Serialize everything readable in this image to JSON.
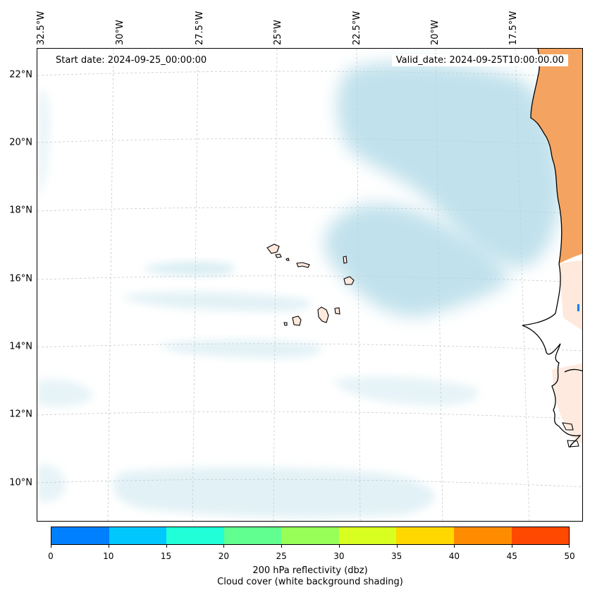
{
  "map": {
    "start_date": "Start date: 2024-09-25_00:00:00",
    "valid_date": "Valid_date: 2024-09-25T10:00:00.00",
    "longitude_labels": [
      "32.5°W",
      "30°W",
      "27.5°W",
      "25°W",
      "22.5°W",
      "20°W",
      "17.5°W"
    ],
    "latitude_labels": [
      "22°N",
      "20°N",
      "18°N",
      "16°N",
      "14°N",
      "12°N",
      "10°N"
    ],
    "colors": {
      "cloud": "#add8e6",
      "land_warm": "#f4a460",
      "coast": "#000000",
      "gridline": "#c8c8c8"
    }
  },
  "colorbar": {
    "ticks": [
      "0",
      "10",
      "15",
      "20",
      "25",
      "30",
      "35",
      "40",
      "45",
      "50"
    ],
    "colors": [
      "#0080ff",
      "#00c8ff",
      "#20ffd8",
      "#60ff90",
      "#98ff58",
      "#d8ff20",
      "#ffd800",
      "#ff8c00",
      "#ff4800"
    ],
    "label_line1": "200 hPa reflectivity (dbz)",
    "label_line2": "Cloud cover (white background shading)"
  }
}
